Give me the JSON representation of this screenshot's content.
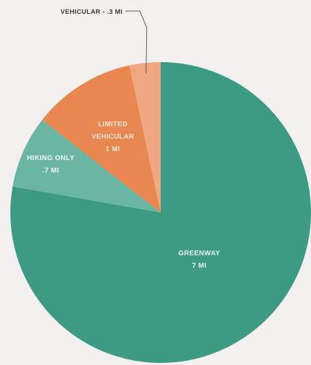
{
  "chart_data": {
    "type": "pie",
    "slices": [
      {
        "name": "Greenway",
        "label_lines": [
          "GREENWAY",
          "7 MI"
        ],
        "value": 7,
        "color": "#3d9b84",
        "label_color": "#e9f3ef"
      },
      {
        "name": "Hiking Only",
        "label_lines": [
          "HIKING ONLY",
          ".7 MI"
        ],
        "value": 0.7,
        "color": "#6ab6a2",
        "label_color": "#eef6f2"
      },
      {
        "name": "Limited Vehicular",
        "label_lines": [
          "LIMITED",
          "VEHICULAR",
          "1 MI"
        ],
        "value": 1,
        "color": "#e8874f",
        "label_color": "#fbe7da"
      },
      {
        "name": "Vehicular",
        "label_lines": [
          "VEHICULAR - .3 MI"
        ],
        "value": 0.3,
        "color": "#efa882",
        "label_color": "#3a3a3a",
        "callout": true
      }
    ],
    "start_angle_deg": 0,
    "direction": "clockwise"
  }
}
